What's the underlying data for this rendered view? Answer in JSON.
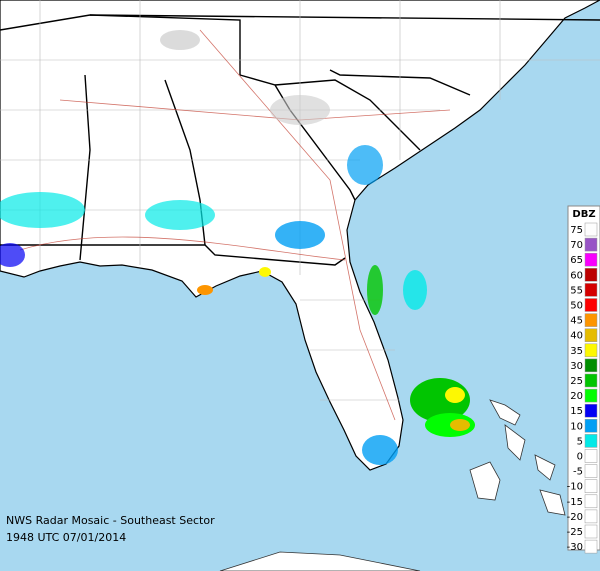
{
  "caption": {
    "line1": "NWS Radar Mosaic - Southeast Sector",
    "line2": "1948 UTC 07/01/2014"
  },
  "legend": {
    "title": "DBZ",
    "items": [
      {
        "label": "75",
        "color": "#fdfdfd"
      },
      {
        "label": "70",
        "color": "#9854c6"
      },
      {
        "label": "65",
        "color": "#f800fd"
      },
      {
        "label": "60",
        "color": "#bc0000"
      },
      {
        "label": "55",
        "color": "#d40000"
      },
      {
        "label": "50",
        "color": "#fd0000"
      },
      {
        "label": "45",
        "color": "#fd9500"
      },
      {
        "label": "40",
        "color": "#e5bc00"
      },
      {
        "label": "35",
        "color": "#fdf802"
      },
      {
        "label": "30",
        "color": "#008e00"
      },
      {
        "label": "25",
        "color": "#01c501"
      },
      {
        "label": "20",
        "color": "#02fd02"
      },
      {
        "label": "15",
        "color": "#0300f4"
      },
      {
        "label": "10",
        "color": "#019ff4"
      },
      {
        "label": "5",
        "color": "#04e9e7"
      },
      {
        "label": "0",
        "color": "#ffffff"
      },
      {
        "label": "-5",
        "color": "#ffffff"
      },
      {
        "label": "-10",
        "color": "#ffffff"
      },
      {
        "label": "-15",
        "color": "#ffffff"
      },
      {
        "label": "-20",
        "color": "#ffffff"
      },
      {
        "label": "-25",
        "color": "#ffffff"
      },
      {
        "label": "-30",
        "color": "#ffffff"
      }
    ]
  }
}
